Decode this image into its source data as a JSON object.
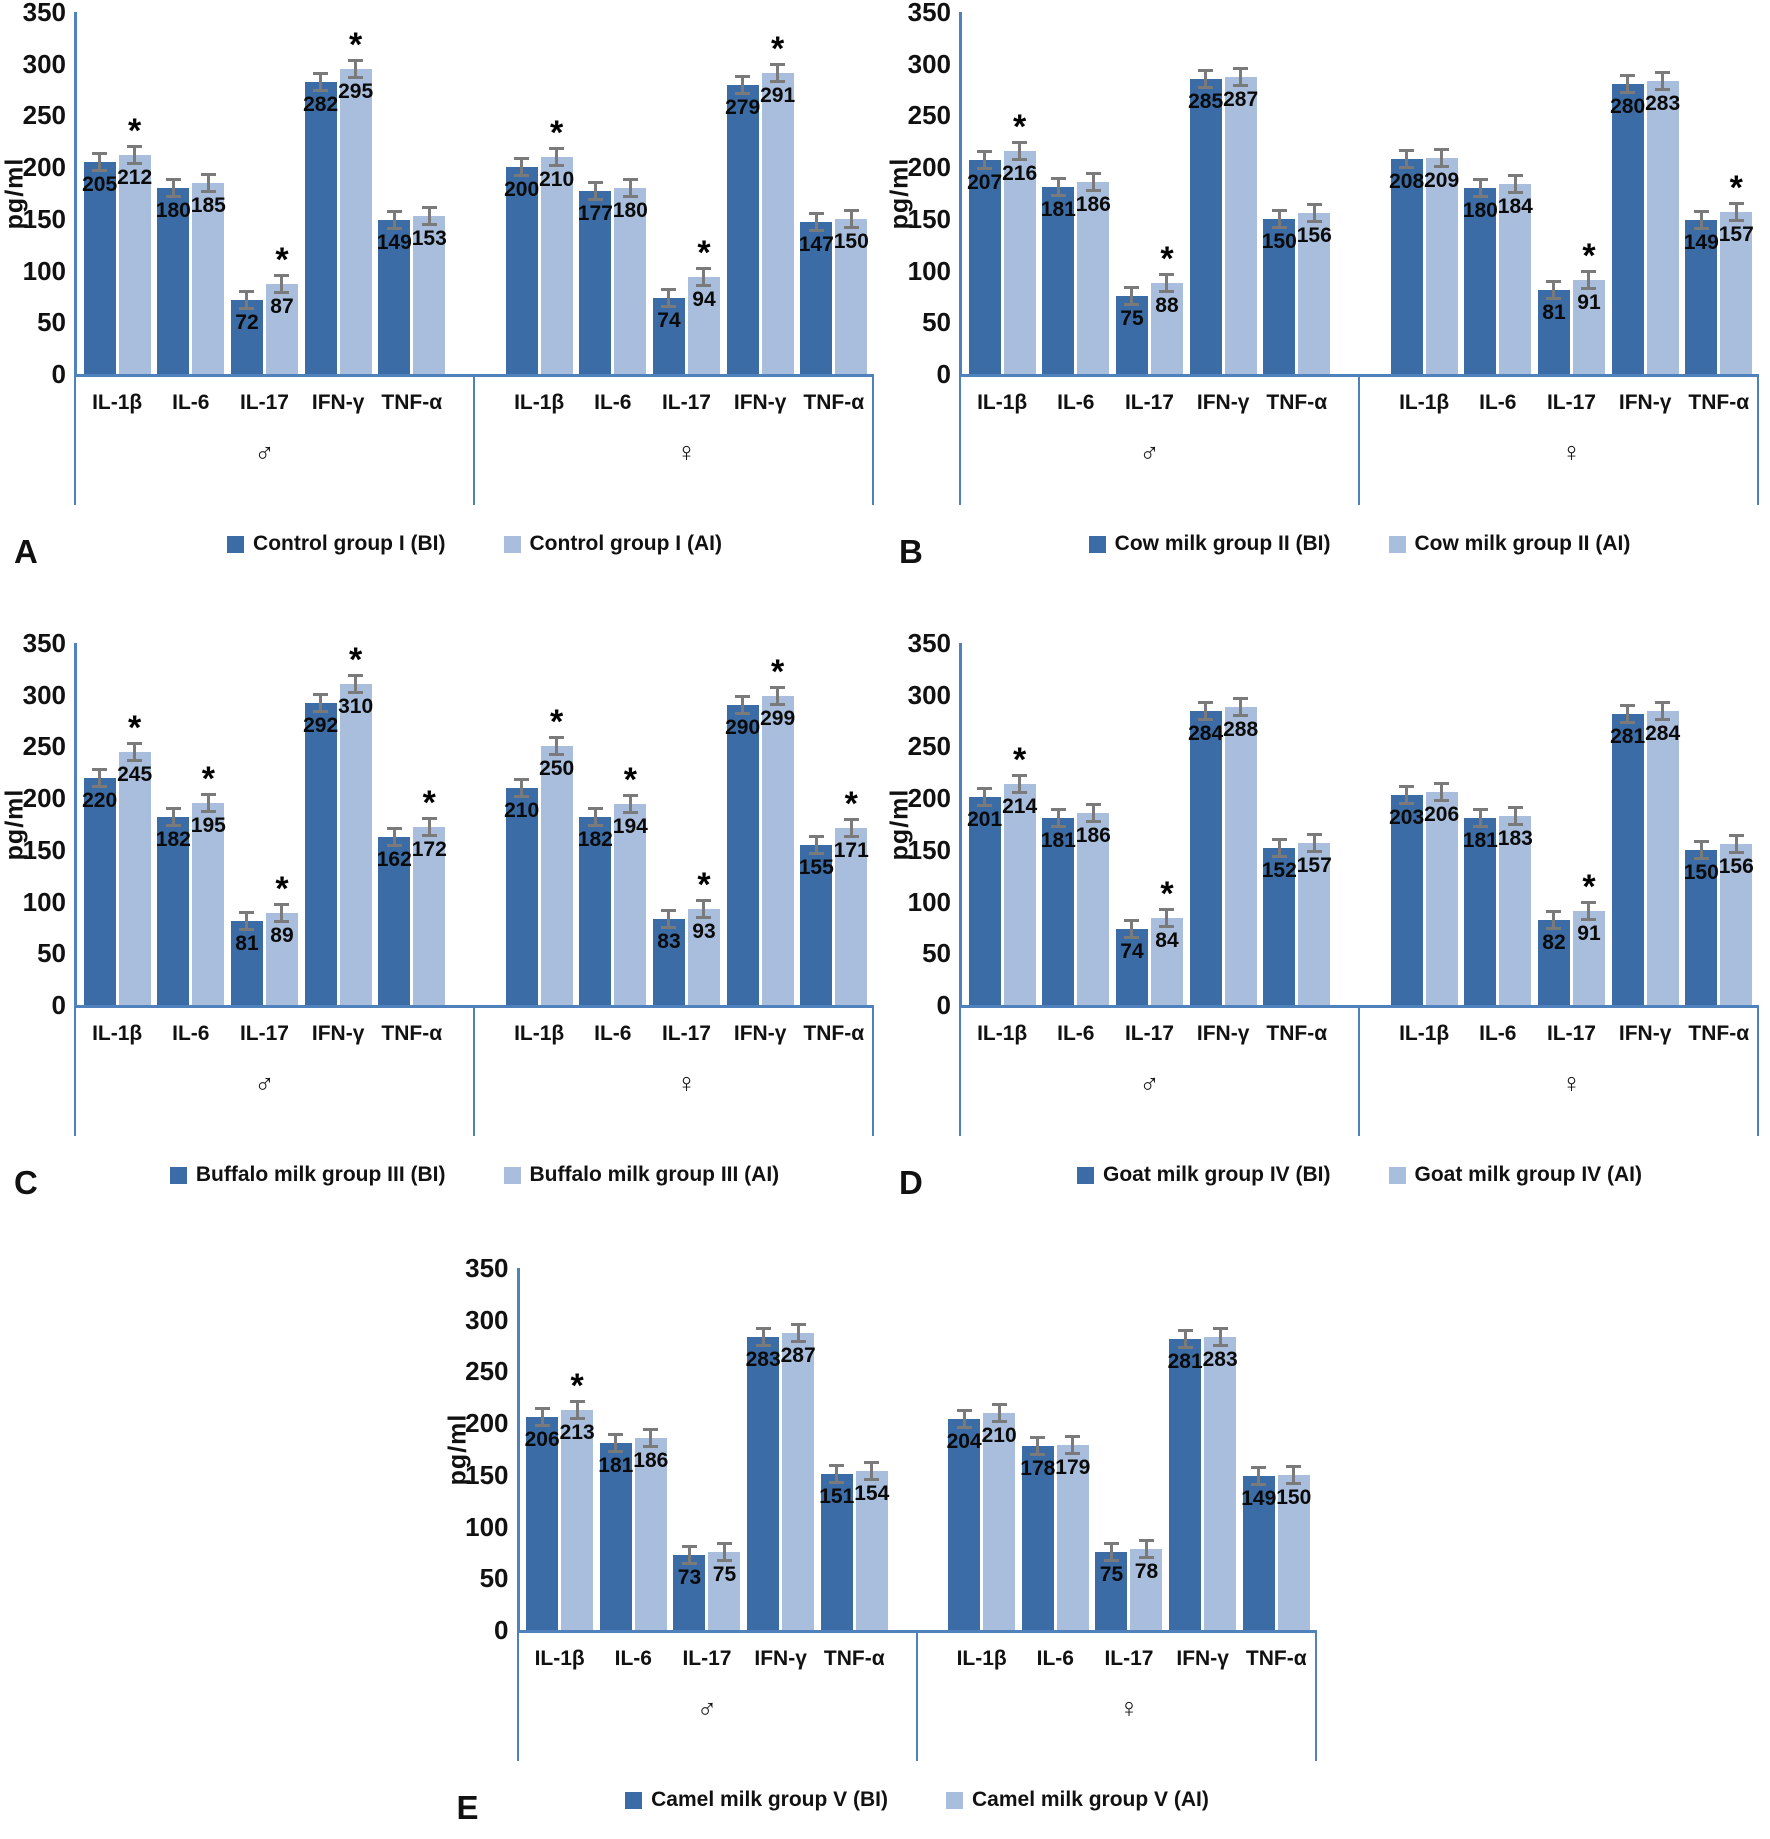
{
  "figure": {
    "ylabel": "pg/ml",
    "ymax": 350,
    "yticks": [
      350,
      300,
      250,
      200,
      150,
      100,
      50,
      0
    ],
    "categories": [
      "IL-1β",
      "IL-6",
      "IL-17",
      "IFN-γ",
      "TNF-α"
    ],
    "sex_symbols": [
      "♂",
      "♀"
    ],
    "sig_symbol": "*",
    "colors": {
      "bi_bar": "#3b6ca6",
      "ai_bar": "#a9bedc",
      "axis": "#4f81bd",
      "error_bar": "#7a7a7a",
      "text": "#111111"
    }
  },
  "chart_data": [
    {
      "type": "bar",
      "panel": "A",
      "legend": [
        "Control group I (BI)",
        "Control group I (AI)"
      ],
      "ylabel": "pg/ml",
      "ylim": [
        0,
        350
      ],
      "categories": [
        "IL-1β",
        "IL-6",
        "IL-17",
        "IFN-γ",
        "TNF-α"
      ],
      "series": [
        {
          "name": "Control group I (BI)",
          "group": "male",
          "values": [
            205,
            180,
            72,
            282,
            149
          ]
        },
        {
          "name": "Control group I (AI)",
          "group": "male",
          "values": [
            212,
            185,
            87,
            295,
            153
          ],
          "sig": [
            1,
            0,
            1,
            1,
            0
          ]
        },
        {
          "name": "Control group I (BI)",
          "group": "female",
          "values": [
            200,
            177,
            74,
            279,
            147
          ]
        },
        {
          "name": "Control group I (AI)",
          "group": "female",
          "values": [
            210,
            180,
            94,
            291,
            150
          ],
          "sig": [
            1,
            0,
            1,
            1,
            0
          ]
        }
      ]
    },
    {
      "type": "bar",
      "panel": "B",
      "legend": [
        "Cow milk group II (BI)",
        "Cow milk group II (AI)"
      ],
      "ylabel": "pg/ml",
      "ylim": [
        0,
        350
      ],
      "categories": [
        "IL-1β",
        "IL-6",
        "IL-17",
        "IFN-γ",
        "TNF-α"
      ],
      "series": [
        {
          "name": "Cow milk group II (BI)",
          "group": "male",
          "values": [
            207,
            181,
            75,
            285,
            150
          ]
        },
        {
          "name": "Cow milk group II (AI)",
          "group": "male",
          "values": [
            216,
            186,
            88,
            287,
            156
          ],
          "sig": [
            1,
            0,
            1,
            0,
            0
          ]
        },
        {
          "name": "Cow milk group II (BI)",
          "group": "female",
          "values": [
            208,
            180,
            81,
            280,
            149
          ]
        },
        {
          "name": "Cow milk group II (AI)",
          "group": "female",
          "values": [
            209,
            184,
            91,
            283,
            157
          ],
          "sig": [
            0,
            0,
            1,
            0,
            1
          ]
        }
      ]
    },
    {
      "type": "bar",
      "panel": "C",
      "legend": [
        "Buffalo milk group III (BI)",
        "Buffalo milk group III (AI)"
      ],
      "ylabel": "pg/ml",
      "ylim": [
        0,
        350
      ],
      "categories": [
        "IL-1β",
        "IL-6",
        "IL-17",
        "IFN-γ",
        "TNF-α"
      ],
      "series": [
        {
          "name": "Buffalo milk group III (BI)",
          "group": "male",
          "values": [
            220,
            182,
            81,
            292,
            162
          ]
        },
        {
          "name": "Buffalo milk group III (AI)",
          "group": "male",
          "values": [
            245,
            195,
            89,
            310,
            172
          ],
          "sig": [
            1,
            1,
            1,
            1,
            1
          ]
        },
        {
          "name": "Buffalo milk group III (BI)",
          "group": "female",
          "values": [
            210,
            182,
            83,
            290,
            155
          ]
        },
        {
          "name": "Buffalo milk group III (AI)",
          "group": "female",
          "values": [
            250,
            194,
            93,
            299,
            171
          ],
          "sig": [
            1,
            1,
            1,
            1,
            1
          ]
        }
      ]
    },
    {
      "type": "bar",
      "panel": "D",
      "legend": [
        "Goat milk group IV (BI)",
        "Goat milk group IV (AI)"
      ],
      "ylabel": "pg/ml",
      "ylim": [
        0,
        350
      ],
      "categories": [
        "IL-1β",
        "IL-6",
        "IL-17",
        "IFN-γ",
        "TNF-α"
      ],
      "series": [
        {
          "name": "Goat milk group IV (BI)",
          "group": "male",
          "values": [
            201,
            181,
            74,
            284,
            152
          ]
        },
        {
          "name": "Goat milk group IV (AI)",
          "group": "male",
          "values": [
            214,
            186,
            84,
            288,
            157
          ],
          "sig": [
            1,
            0,
            1,
            0,
            0
          ]
        },
        {
          "name": "Goat milk group IV (BI)",
          "group": "female",
          "values": [
            203,
            181,
            82,
            281,
            150
          ]
        },
        {
          "name": "Goat milk group IV (AI)",
          "group": "female",
          "values": [
            206,
            183,
            91,
            284,
            156
          ],
          "sig": [
            0,
            0,
            1,
            0,
            0
          ]
        }
      ]
    },
    {
      "type": "bar",
      "panel": "E",
      "legend": [
        "Camel milk group V (BI)",
        "Camel milk group V (AI)"
      ],
      "ylabel": "pg/ml",
      "ylim": [
        0,
        350
      ],
      "categories": [
        "IL-1β",
        "IL-6",
        "IL-17",
        "IFN-γ",
        "TNF-α"
      ],
      "series": [
        {
          "name": "Camel milk group V (BI)",
          "group": "male",
          "values": [
            206,
            181,
            73,
            283,
            151
          ]
        },
        {
          "name": "Camel milk group V (AI)",
          "group": "male",
          "values": [
            213,
            186,
            75,
            287,
            154
          ],
          "sig": [
            1,
            0,
            0,
            0,
            0
          ]
        },
        {
          "name": "Camel milk group V (BI)",
          "group": "female",
          "values": [
            204,
            178,
            75,
            281,
            149
          ]
        },
        {
          "name": "Camel milk group V (AI)",
          "group": "female",
          "values": [
            210,
            179,
            78,
            283,
            150
          ],
          "sig": [
            0,
            0,
            0,
            0,
            0
          ]
        }
      ]
    }
  ]
}
